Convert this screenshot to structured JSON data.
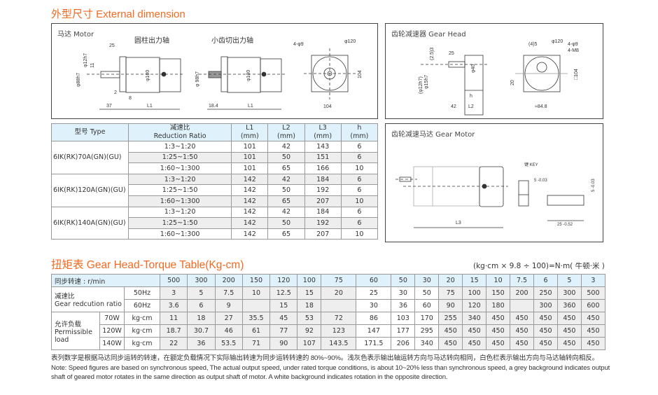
{
  "titles": {
    "external": "外型尺寸 External dimension",
    "torque": "扭矩表 Gear Head-Torque Table(Kg-cm)"
  },
  "motor_box": {
    "caption": "马达 Motor",
    "shaft1": "圆柱出力轴",
    "shaft2": "小齿切出力轴",
    "labels": {
      "d12": "φ12h7",
      "d88": "φ88h7",
      "d88b": "φ 98h7",
      "len25": "25",
      "len11": "11",
      "d100": "φ100",
      "len2": "2",
      "len8": "8",
      "len37": "37",
      "len184": "18.4",
      "L1": "L1",
      "holes": "4-φ9",
      "d120": "φ120",
      "sq104": "104",
      "w104": "104"
    }
  },
  "gearhead_box": {
    "caption": "齿轮减速器 Gear Head",
    "labels": {
      "s25": "25",
      "s253": "(2.5)3",
      "d12": "(φ12h7)",
      "d15": "φ15h7",
      "d40": "φ40",
      "h": "h",
      "s42": "42",
      "L2": "L2",
      "s45": "(4)5",
      "d120": "φ120",
      "holes": "4-φ9",
      "m8": "4-M8",
      "sq104": "□104",
      "s20": "20",
      "w848": "≈84.8"
    }
  },
  "gearmotor_box": {
    "caption": "齿轮减速马达 Gear Motor",
    "labels": {
      "L3": "L3",
      "key": "键  KEY",
      "k5": "5 -0.03",
      "k25": "25 -0.52",
      "k5v": "5 -0.03"
    }
  },
  "dimension_table": {
    "headers": [
      [
        "型号 Type"
      ],
      [
        "减速比",
        "Reduction Ratio"
      ],
      [
        "L1",
        "(mm)"
      ],
      [
        "L2",
        "(mm)"
      ],
      [
        "L3",
        "(mm)"
      ],
      [
        "h",
        "(mm)"
      ]
    ],
    "groups": [
      {
        "model": "6IK(RK)70A(GN)(GU)",
        "rows": [
          [
            "1:3~1:20",
            "101",
            "42",
            "143",
            "6"
          ],
          [
            "1:25~1:50",
            "101",
            "50",
            "151",
            "6"
          ],
          [
            "1:60~1:300",
            "101",
            "65",
            "166",
            "10"
          ]
        ]
      },
      {
        "model": "6IK(RK)120A(GN)(GU)",
        "rows": [
          [
            "1:3~1:20",
            "142",
            "42",
            "184",
            "6"
          ],
          [
            "1:25~1:50",
            "142",
            "50",
            "192",
            "6"
          ],
          [
            "1:60~1:300",
            "142",
            "65",
            "207",
            "10"
          ]
        ]
      },
      {
        "model": "6IK(RK)140A(GN)(GU)",
        "rows": [
          [
            "1:3~1:20",
            "142",
            "42",
            "184",
            "6"
          ],
          [
            "1:25~1:50",
            "142",
            "50",
            "192",
            "6"
          ],
          [
            "1:60~1:300",
            "142",
            "65",
            "207",
            "10"
          ]
        ]
      }
    ]
  },
  "torque_table": {
    "unit_note": "(kg·cm × 9.8 ÷ 100)=N·m( 牛顿·米 )",
    "speed_label": "同步转速 : r/min",
    "speeds": [
      "500",
      "300",
      "200",
      "150",
      "120",
      "100",
      "75",
      "60",
      "50",
      "30",
      "20",
      "15",
      "10",
      "7.5",
      "6",
      "5",
      "3"
    ],
    "grey_columns": [
      true,
      true,
      true,
      true,
      true,
      true,
      true,
      false,
      false,
      false,
      true,
      true,
      true,
      true,
      true,
      true,
      true
    ],
    "ratio_label_cn": "减速比",
    "ratio_label_en": "Gear redcution ratio",
    "ratio_50hz_label": "50Hz",
    "ratio_50hz": [
      "3",
      "5",
      "7.5",
      "10",
      "12.5",
      "15",
      "20",
      "25",
      "30",
      "50",
      "75",
      "100",
      "150",
      "200",
      "250",
      "300",
      "500"
    ],
    "ratio_60hz_label": "60Hz",
    "ratio_60hz": [
      "3.6",
      "6",
      "9",
      "",
      "15",
      "18",
      "",
      "30",
      "36",
      "60",
      "90",
      "120",
      "180",
      "",
      "300",
      "360",
      "600"
    ],
    "load_label_cn": "允许负载",
    "load_label_en1": "Permissible",
    "load_label_en2": "load",
    "loads": [
      {
        "power": "70W",
        "unit": "kg·cm",
        "values": [
          "11",
          "18",
          "27",
          "35.5",
          "45",
          "53",
          "72",
          "86",
          "103",
          "170",
          "255",
          "340",
          "450",
          "450",
          "450",
          "450",
          "450"
        ]
      },
      {
        "power": "120W",
        "unit": "kg·cm",
        "values": [
          "18.7",
          "30.7",
          "46",
          "61",
          "77",
          "92",
          "123",
          "147",
          "177",
          "295",
          "450",
          "450",
          "450",
          "450",
          "450",
          "450",
          "450"
        ]
      },
      {
        "power": "140W",
        "unit": "kg·cm",
        "values": [
          "22",
          "36",
          "53.5",
          "71",
          "90",
          "107",
          "143.5",
          "171.5",
          "206",
          "340",
          "450",
          "450",
          "450",
          "450",
          "450",
          "450",
          "450"
        ]
      }
    ]
  },
  "notes": {
    "cn": "表列数字是根据马达同步运转的转速，在额定负载情况下实际输出转速为同步运转转速的 80%~90%。浅灰色表示输出轴运转方向与马达转向相同，白色栏表示输出方向与马达轴转向相反。",
    "en": "Note: Speed figures are based on synchronous speed, The actual output speed, under rated torque conditions, is about 10~20% less than synchronous speed, a grey background indicates output shaft of geared motor rotates in the same direction as output shaft of motor. A white background indicates rotation in the opposite direction."
  },
  "colors": {
    "accent": "#f26a21",
    "header_bg": "#dff1fb",
    "grey_bg": "#eeeeee"
  }
}
